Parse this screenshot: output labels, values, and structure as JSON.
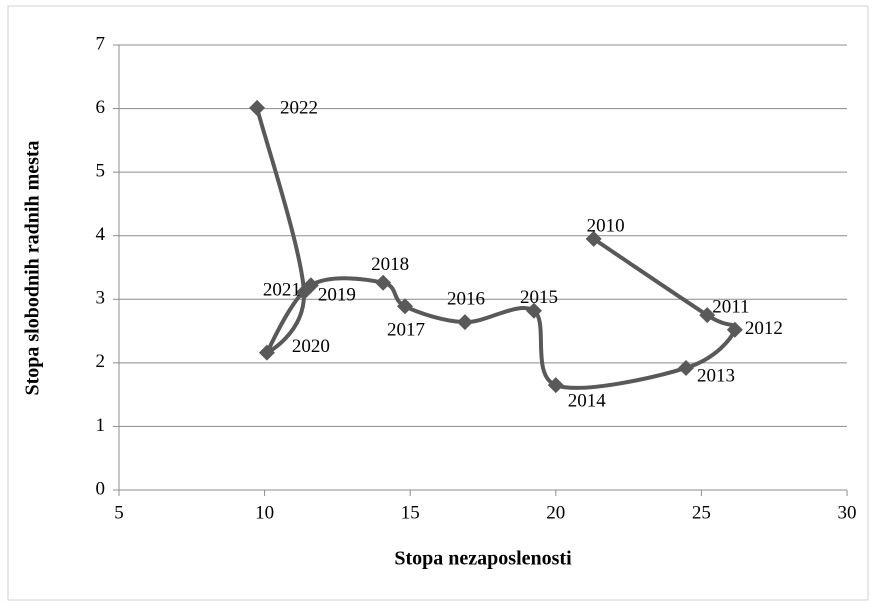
{
  "chart_data": {
    "type": "scatter",
    "x_label": "Stopa nezaposlenosti",
    "y_label": "Stopa slobodnih radnih mesta",
    "point_labels": [
      "2010",
      "2011",
      "2012",
      "2013",
      "2014",
      "2015",
      "2016",
      "2017",
      "2018",
      "2019",
      "2020",
      "2021",
      "2022"
    ],
    "x": [
      21.3,
      25.2,
      26.15,
      24.47,
      20.0,
      19.25,
      16.88,
      14.82,
      14.07,
      11.59,
      10.08,
      11.35,
      9.74
    ],
    "values": [
      3.95,
      2.75,
      2.52,
      1.92,
      1.65,
      2.82,
      2.64,
      2.89,
      3.26,
      3.22,
      2.16,
      3.11,
      6.01
    ],
    "xlim": [
      5,
      30
    ],
    "xticks": [
      5,
      10,
      15,
      20,
      25,
      30
    ],
    "ylim": [
      0,
      7
    ],
    "yticks": [
      0,
      1,
      2,
      3,
      4,
      5,
      6,
      7
    ],
    "color": "#595959",
    "grid": true,
    "smooth": true
  }
}
